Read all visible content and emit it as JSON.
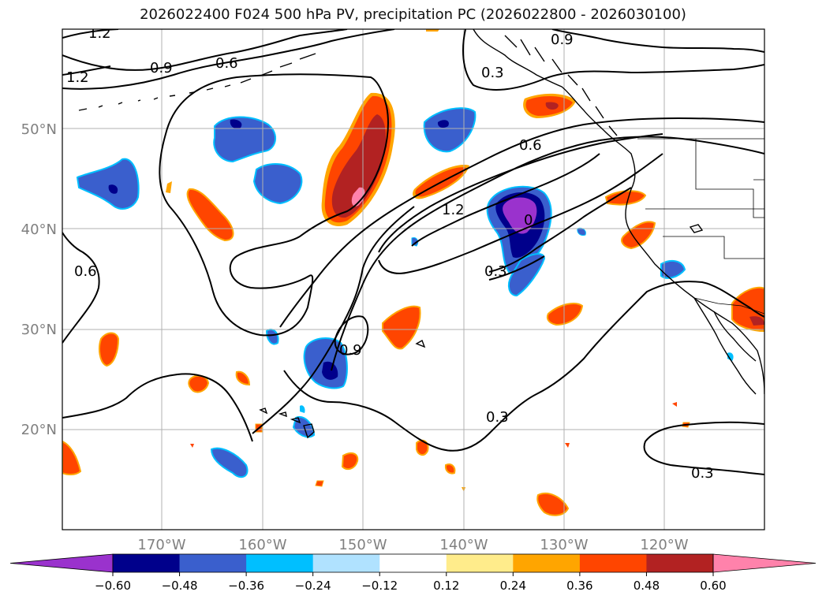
{
  "title": "2026022400 F024 500 hPa PV, precipitation PC (2026022800 - 2026030100)",
  "map": {
    "lat_labels": [
      "50°N",
      "40°N",
      "30°N",
      "20°N"
    ],
    "lon_labels": [
      "170°W",
      "160°W",
      "150°W",
      "140°W",
      "130°W",
      "120°W"
    ],
    "gridlines": true,
    "grid_color": "#b0b0b0"
  },
  "contour_labels": [
    "1.2",
    "0.9",
    "0.6",
    "1.2",
    "0.3",
    "0.9",
    "0.6",
    "1.2",
    "0.6",
    "0.3",
    "0.9",
    "0.3",
    "0.3",
    "0"
  ],
  "colorbar": {
    "ticks": [
      "−0.60",
      "−0.48",
      "−0.36",
      "−0.24",
      "−0.12",
      "0.12",
      "0.24",
      "0.36",
      "0.48",
      "0.60"
    ],
    "colors": [
      "#9a32cd",
      "#00008b",
      "#3a5fcd",
      "#00bfff",
      "#b0e2ff",
      "#ffffff",
      "#ffec8b",
      "#ffa500",
      "#ff4500",
      "#b22222",
      "#ff82ab"
    ],
    "extend": "both"
  }
}
